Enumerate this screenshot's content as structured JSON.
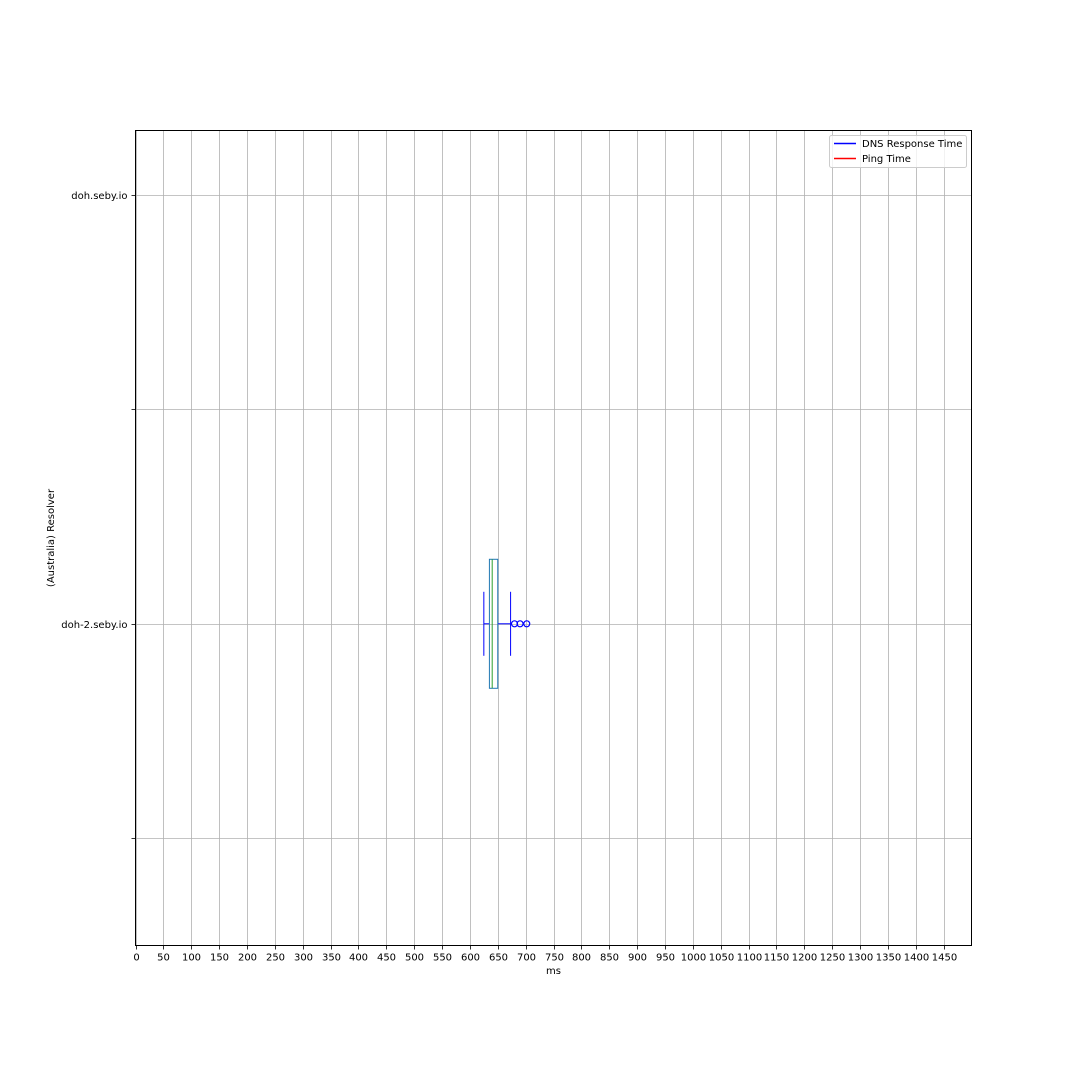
{
  "chart_data": {
    "type": "boxplot",
    "orientation": "horizontal",
    "xlabel": "ms",
    "ylabel": "(Australia) Resolver",
    "xlim": [
      0,
      1500
    ],
    "x_ticks": [
      0,
      50,
      100,
      150,
      200,
      250,
      300,
      350,
      400,
      450,
      500,
      550,
      600,
      650,
      700,
      750,
      800,
      850,
      900,
      950,
      1000,
      1050,
      1100,
      1150,
      1200,
      1250,
      1300,
      1350,
      1400,
      1450
    ],
    "categories": [
      "doh-2.seby.io",
      "doh.seby.io"
    ],
    "grid": true,
    "legend": {
      "placement": "top-right",
      "entries": [
        {
          "label": "DNS Response Time",
          "color": "#0000ff"
        },
        {
          "label": "Ping Time",
          "color": "#ff0000"
        }
      ]
    },
    "series": [
      {
        "name": "DNS Response Time",
        "color": "#0000ff",
        "boxes": [
          {
            "category": "doh-2.seby.io",
            "whisker_low": 625,
            "q1": 635,
            "median": 640,
            "q3": 650,
            "whisker_high": 673,
            "outliers": [
              680,
              690,
              702
            ]
          },
          {
            "category": "doh.seby.io"
          }
        ]
      },
      {
        "name": "Ping Time",
        "color": "#ff0000",
        "boxes": [
          {
            "category": "doh-2.seby.io"
          },
          {
            "category": "doh.seby.io"
          }
        ]
      }
    ],
    "colors": {
      "box": "#1f77b4",
      "median": "#2ca02c",
      "whisker": "#0000ff",
      "grid": "#b0b0b0"
    }
  }
}
